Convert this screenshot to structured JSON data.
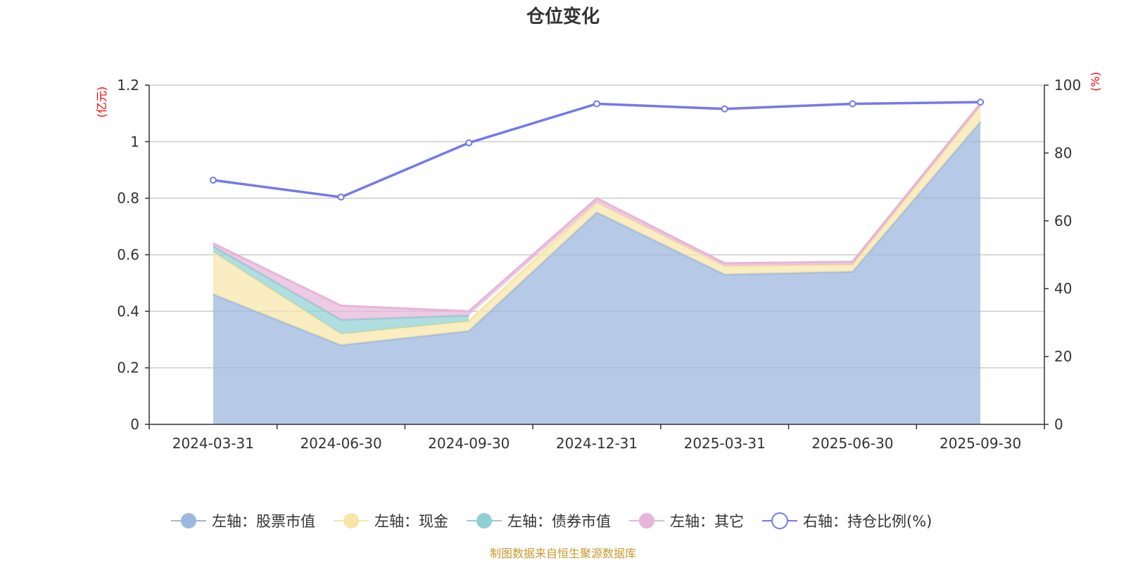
{
  "chart_data": {
    "type": "area",
    "title": "仓位变化",
    "x": [
      "2024-03-31",
      "2024-06-30",
      "2024-09-30",
      "2024-12-31",
      "2025-03-31",
      "2025-06-30",
      "2025-09-30"
    ],
    "left_axis": {
      "unit": "(亿元)",
      "ylim": [
        0,
        1.2
      ],
      "ticks": [
        "0",
        "0.2",
        "0.4",
        "0.6",
        "0.8",
        "1",
        "1.2"
      ]
    },
    "right_axis": {
      "unit": "(%)",
      "ylim": [
        0,
        100
      ],
      "ticks": [
        "0",
        "20",
        "40",
        "60",
        "80",
        "100"
      ]
    },
    "series": [
      {
        "name": "左轴：股票市值",
        "axis": "left",
        "stacked": true,
        "color": "#9db8e0",
        "values": [
          0.46,
          0.28,
          0.33,
          0.75,
          0.53,
          0.54,
          1.07
        ]
      },
      {
        "name": "左轴：现金",
        "axis": "left",
        "stacked": true,
        "color": "#f7e6a6",
        "values": [
          0.15,
          0.04,
          0.035,
          0.035,
          0.03,
          0.025,
          0.055
        ]
      },
      {
        "name": "左轴：债券市值",
        "axis": "left",
        "stacked": true,
        "color": "#8fd0d3",
        "values": [
          0.02,
          0.05,
          0.02,
          null,
          null,
          null,
          null
        ]
      },
      {
        "name": "左轴：其它",
        "axis": "left",
        "stacked": true,
        "color": "#e6b5d8",
        "values": [
          0.01,
          0.05,
          0.015,
          0.015,
          0.01,
          0.01,
          0.01
        ]
      },
      {
        "name": "右轴：持仓比例(%)",
        "axis": "right",
        "type": "line",
        "color": "#7479eb",
        "values": [
          72,
          67,
          83,
          94.5,
          93,
          94.5,
          95
        ]
      }
    ],
    "grid": true,
    "legend_position": "bottom"
  },
  "source_note": "制图数据来自恒生聚源数据库"
}
